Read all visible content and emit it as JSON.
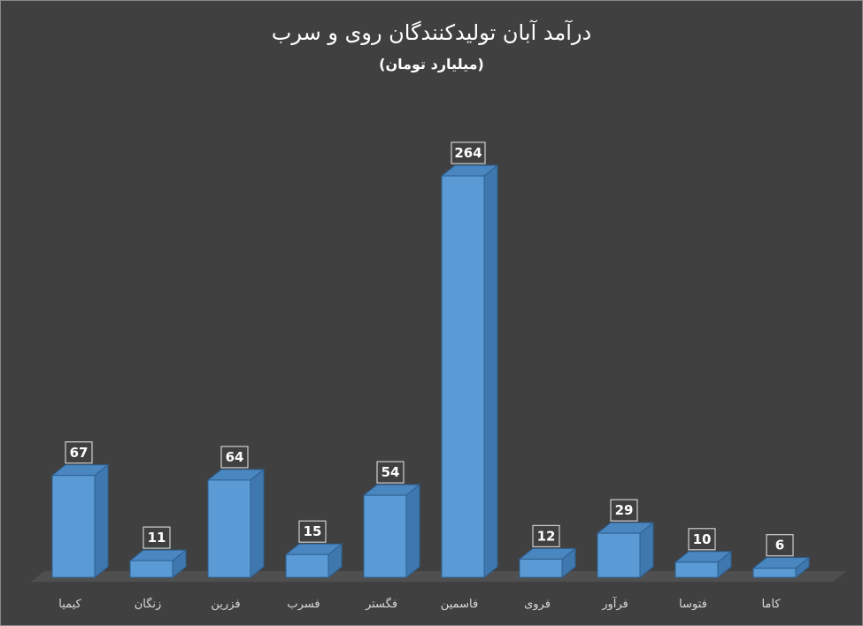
{
  "chart_data": {
    "type": "bar",
    "title": "درآمد آبان تولیدکنندگان روی و سرب",
    "subtitle": "(میلیارد تومان)",
    "categories": [
      "کیمیا",
      "زنگان",
      "فزرین",
      "فسرب",
      "فگستر",
      "فاسمین",
      "فروی",
      "فرآور",
      "فتوسا",
      "کاما"
    ],
    "values": [
      67,
      11,
      64,
      15,
      54,
      264,
      12,
      29,
      10,
      6
    ],
    "ylim": [
      0,
      264
    ],
    "grid": false,
    "legend": "none",
    "colors": {
      "background": "#404040",
      "bar_front": "#5b9bd5",
      "bar_side": "#3f78ae",
      "bar_top": "#4a86c0",
      "bar_edge": "#2e5f8f",
      "floor": "#4f4f4f",
      "label_box": "#404040",
      "label_border": "#cfcfcf",
      "text": "#ffffff"
    }
  }
}
